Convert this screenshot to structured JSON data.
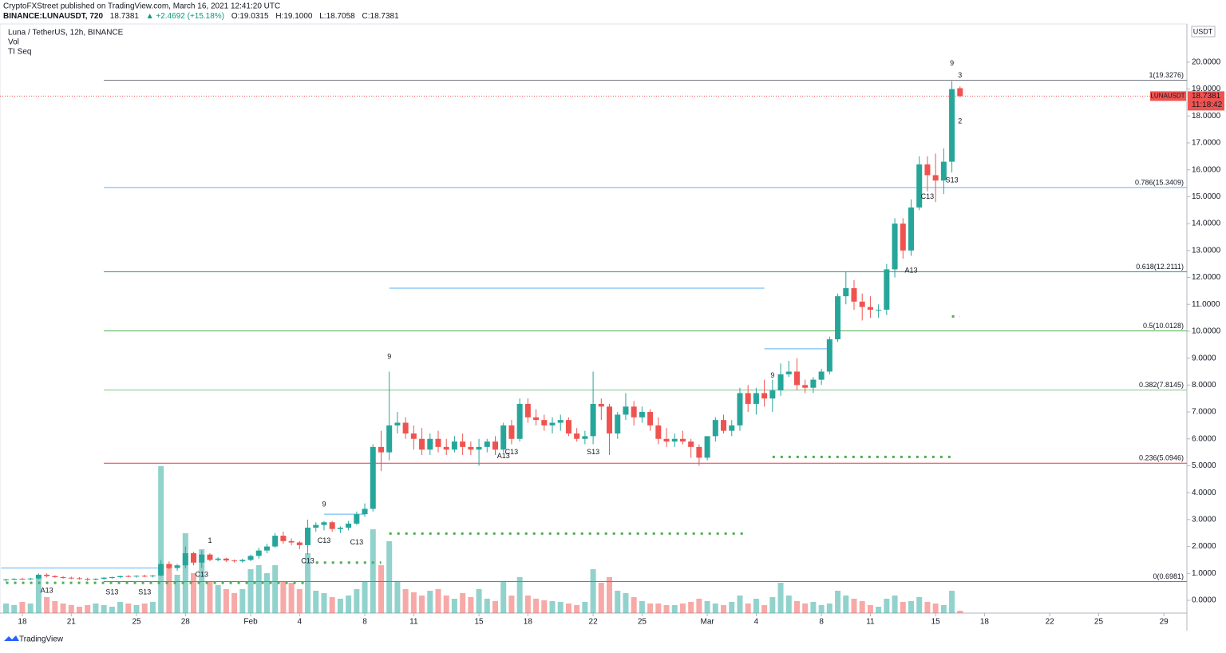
{
  "header": {
    "published": "CryptoFXStreet published on TradingView.com, March 16, 2021 12:41:20 UTC",
    "symbol": "BINANCE:LUNAUSDT, 720",
    "price": "18.7381",
    "change": "▲ +2.4692 (+15.18%)",
    "ohlc": [
      "O:19.0315",
      "H:19.1000",
      "L:18.7058",
      "C:18.7381"
    ]
  },
  "legend": [
    "Luna / TetherUS, 12h, BINANCE",
    "Vol",
    "TI Seq"
  ],
  "footer": "TradingView",
  "chart_data": {
    "type": "candlestick",
    "currency": "USDT",
    "up_color": "#26a69a",
    "down_color": "#ef5350",
    "xlim": [
      16.63,
      89.41
    ],
    "ylim": [
      -0.475,
      21.42
    ],
    "xticks": [
      {
        "value": 18,
        "label": "18"
      },
      {
        "value": 21,
        "label": "21"
      },
      {
        "value": 25,
        "label": "25"
      },
      {
        "value": 28,
        "label": "28"
      },
      {
        "value": 32,
        "label": "Feb"
      },
      {
        "value": 35,
        "label": "4"
      },
      {
        "value": 39,
        "label": "8"
      },
      {
        "value": 42,
        "label": "11"
      },
      {
        "value": 46,
        "label": "15"
      },
      {
        "value": 49,
        "label": "18"
      },
      {
        "value": 53,
        "label": "22"
      },
      {
        "value": 56,
        "label": "25"
      },
      {
        "value": 60,
        "label": "Mar"
      },
      {
        "value": 63,
        "label": "4"
      },
      {
        "value": 67,
        "label": "8"
      },
      {
        "value": 70,
        "label": "11"
      },
      {
        "value": 74,
        "label": "15"
      },
      {
        "value": 77,
        "label": "18"
      },
      {
        "value": 81,
        "label": "22"
      },
      {
        "value": 84,
        "label": "25"
      },
      {
        "value": 88,
        "label": "29"
      }
    ],
    "yticks": [
      {
        "value": 0,
        "label": "0.0000"
      },
      {
        "value": 1,
        "label": "1.0000"
      },
      {
        "value": 2,
        "label": "2.0000"
      },
      {
        "value": 3,
        "label": "3.0000"
      },
      {
        "value": 4,
        "label": "4.0000"
      },
      {
        "value": 5,
        "label": "5.0000"
      },
      {
        "value": 6,
        "label": "6.0000"
      },
      {
        "value": 7,
        "label": "7.0000"
      },
      {
        "value": 8,
        "label": "8.0000"
      },
      {
        "value": 9,
        "label": "9.0000"
      },
      {
        "value": 10,
        "label": "10.0000"
      },
      {
        "value": 11,
        "label": "11.0000"
      },
      {
        "value": 12,
        "label": "12.0000"
      },
      {
        "value": 13,
        "label": "13.0000"
      },
      {
        "value": 14,
        "label": "14.0000"
      },
      {
        "value": 15,
        "label": "15.0000"
      },
      {
        "value": 16,
        "label": "16.0000"
      },
      {
        "value": 17,
        "label": "17.0000"
      },
      {
        "value": 18,
        "label": "18.0000"
      },
      {
        "value": 19,
        "label": "19.0000"
      },
      {
        "value": 20,
        "label": "20.0000"
      }
    ],
    "x": [
      17,
      17.5,
      18,
      18.5,
      19,
      19.5,
      20,
      20.5,
      21,
      21.5,
      22,
      22.5,
      23,
      23.5,
      24,
      24.5,
      25,
      25.5,
      26,
      26.5,
      27,
      27.5,
      28,
      28.5,
      29,
      29.5,
      30,
      30.5,
      31,
      31.5,
      32,
      32.5,
      33,
      33.5,
      34,
      34.5,
      35,
      35.5,
      36,
      36.5,
      37,
      37.5,
      38,
      38.5,
      39,
      39.5,
      40,
      40.5,
      41,
      41.5,
      42,
      42.5,
      43,
      43.5,
      44,
      44.5,
      45,
      45.5,
      46,
      46.5,
      47,
      47.5,
      48,
      48.5,
      49,
      49.5,
      50,
      50.5,
      51,
      51.5,
      52,
      52.5,
      53,
      53.5,
      54,
      54.5,
      55,
      55.5,
      56,
      56.5,
      57,
      57.5,
      58,
      58.5,
      59,
      59.5,
      60,
      60.5,
      61,
      61.5,
      62,
      62.5,
      63,
      63.5,
      64,
      64.5,
      65,
      65.5,
      66,
      66.5,
      67,
      67.5,
      68,
      68.5,
      69,
      69.5,
      70,
      70.5,
      71,
      71.5,
      72,
      72.5,
      73,
      73.5,
      74,
      74.5,
      75,
      75.5
    ],
    "open": [
      0.75,
      0.78,
      0.8,
      0.79,
      0.81,
      0.95,
      0.9,
      0.86,
      0.84,
      0.82,
      0.8,
      0.78,
      0.8,
      0.84,
      0.86,
      0.9,
      0.88,
      0.91,
      0.89,
      0.92,
      1.35,
      1.2,
      1.3,
      1.75,
      1.4,
      1.7,
      1.5,
      1.55,
      1.48,
      1.45,
      1.5,
      1.65,
      1.85,
      2.0,
      2.4,
      2.2,
      2.15,
      2.05,
      2.7,
      2.8,
      2.9,
      2.65,
      2.7,
      2.85,
      3.2,
      3.4,
      5.7,
      5.5,
      6.5,
      6.6,
      6.2,
      6.0,
      5.6,
      6.0,
      5.7,
      5.6,
      5.9,
      5.7,
      5.6,
      5.7,
      5.9,
      5.6,
      6.5,
      6.0,
      7.3,
      6.8,
      6.7,
      6.5,
      6.6,
      6.7,
      6.2,
      6.0,
      6.1,
      7.3,
      7.2,
      6.2,
      6.9,
      7.2,
      6.8,
      7.0,
      6.5,
      6.0,
      5.9,
      6.0,
      5.9,
      5.7,
      5.3,
      6.1,
      6.7,
      6.3,
      6.5,
      7.7,
      7.3,
      7.7,
      7.5,
      7.8,
      8.4,
      8.5,
      8.0,
      7.9,
      8.2,
      8.5,
      9.7,
      11.3,
      11.6,
      11.1,
      10.9,
      10.8,
      10.8,
      12.3,
      14.0,
      13.0,
      14.6,
      16.2,
      15.8,
      15.6,
      16.3,
      19.0315
    ],
    "high": [
      0.8,
      0.82,
      0.84,
      0.83,
      1.0,
      1.0,
      0.93,
      0.9,
      0.88,
      0.86,
      0.84,
      0.82,
      0.86,
      0.88,
      0.92,
      0.94,
      0.93,
      0.95,
      0.94,
      1.5,
      1.45,
      1.35,
      2.0,
      1.8,
      1.85,
      1.75,
      1.6,
      1.58,
      1.52,
      1.55,
      1.7,
      1.95,
      2.1,
      2.5,
      2.55,
      2.3,
      2.2,
      3.0,
      2.9,
      2.95,
      2.95,
      2.75,
      2.95,
      3.3,
      3.6,
      5.8,
      6.3,
      8.5,
      7.0,
      6.8,
      6.5,
      6.4,
      6.2,
      6.3,
      6.0,
      6.1,
      6.2,
      5.9,
      6.0,
      6.0,
      6.1,
      6.6,
      6.7,
      7.5,
      7.5,
      7.1,
      6.9,
      6.8,
      6.9,
      6.8,
      6.4,
      6.3,
      8.5,
      7.5,
      7.3,
      7.0,
      7.7,
      7.4,
      7.2,
      7.1,
      6.8,
      6.4,
      6.2,
      6.3,
      6.0,
      5.8,
      6.1,
      6.8,
      6.9,
      6.7,
      7.9,
      8.0,
      7.9,
      8.2,
      8.2,
      8.8,
      8.9,
      9.0,
      8.2,
      8.3,
      8.6,
      9.8,
      11.4,
      12.2,
      11.9,
      11.4,
      11.3,
      11.0,
      12.5,
      14.2,
      14.2,
      14.9,
      16.5,
      16.5,
      16.6,
      16.8,
      19.3,
      19.1
    ],
    "low": [
      0.7,
      0.74,
      0.76,
      0.75,
      0.78,
      0.85,
      0.84,
      0.8,
      0.78,
      0.77,
      0.72,
      0.74,
      0.76,
      0.8,
      0.82,
      0.85,
      0.84,
      0.86,
      0.85,
      0.9,
      1.15,
      1.1,
      1.2,
      1.3,
      1.2,
      1.45,
      1.45,
      1.42,
      1.4,
      1.4,
      1.45,
      1.55,
      1.75,
      1.95,
      2.1,
      2.05,
      1.9,
      1.7,
      2.55,
      2.6,
      2.55,
      2.5,
      2.6,
      2.8,
      3.1,
      3.3,
      4.8,
      5.2,
      6.2,
      6.0,
      5.6,
      5.4,
      5.4,
      5.5,
      5.4,
      5.5,
      5.4,
      5.4,
      5.0,
      5.5,
      5.4,
      5.5,
      5.8,
      5.9,
      6.6,
      6.5,
      6.3,
      6.2,
      6.3,
      6.1,
      5.9,
      5.8,
      5.8,
      6.7,
      5.4,
      6.0,
      6.7,
      6.5,
      6.6,
      6.3,
      5.8,
      5.7,
      5.7,
      5.8,
      5.3,
      5.0,
      5.2,
      5.9,
      6.2,
      6.1,
      6.3,
      7.0,
      6.9,
      7.2,
      7.0,
      7.6,
      8.3,
      7.8,
      7.7,
      7.7,
      8.0,
      8.4,
      9.6,
      11.0,
      10.8,
      10.4,
      10.5,
      10.5,
      10.6,
      12.0,
      12.7,
      12.8,
      14.5,
      15.2,
      14.8,
      15.1,
      15.9,
      18.7058
    ],
    "close": [
      0.78,
      0.8,
      0.79,
      0.81,
      0.95,
      0.9,
      0.86,
      0.84,
      0.82,
      0.8,
      0.78,
      0.8,
      0.84,
      0.86,
      0.9,
      0.88,
      0.91,
      0.89,
      0.92,
      1.35,
      1.2,
      1.3,
      1.75,
      1.4,
      1.7,
      1.5,
      1.55,
      1.48,
      1.45,
      1.5,
      1.65,
      1.85,
      2.0,
      2.4,
      2.2,
      2.15,
      2.05,
      2.7,
      2.8,
      2.9,
      2.65,
      2.7,
      2.85,
      3.2,
      3.4,
      5.7,
      5.5,
      6.5,
      6.6,
      6.2,
      6.0,
      5.6,
      6.0,
      5.7,
      5.6,
      5.9,
      5.7,
      5.6,
      5.7,
      5.9,
      5.6,
      6.5,
      6.0,
      7.3,
      6.8,
      6.7,
      6.5,
      6.6,
      6.7,
      6.2,
      6.0,
      6.1,
      7.3,
      7.2,
      6.2,
      6.9,
      7.2,
      6.8,
      7.0,
      6.5,
      6.0,
      5.9,
      6.0,
      5.9,
      5.7,
      5.3,
      6.1,
      6.7,
      6.3,
      6.5,
      7.7,
      7.3,
      7.7,
      7.5,
      7.8,
      8.4,
      8.5,
      8.0,
      7.9,
      8.2,
      8.5,
      9.7,
      11.3,
      11.6,
      11.1,
      10.9,
      10.8,
      10.8,
      12.3,
      14.0,
      13.0,
      14.6,
      16.2,
      15.8,
      15.6,
      16.3,
      19.0,
      18.7381
    ],
    "volume": [
      12,
      10,
      14,
      12,
      45,
      20,
      15,
      12,
      10,
      8,
      10,
      12,
      10,
      8,
      14,
      12,
      10,
      12,
      14,
      184,
      60,
      48,
      100,
      50,
      80,
      40,
      35,
      30,
      25,
      30,
      55,
      60,
      50,
      60,
      40,
      38,
      30,
      75,
      28,
      25,
      20,
      18,
      22,
      30,
      40,
      105,
      60,
      90,
      40,
      30,
      26,
      22,
      28,
      30,
      22,
      18,
      25,
      20,
      30,
      18,
      15,
      40,
      22,
      45,
      22,
      18,
      16,
      15,
      14,
      12,
      10,
      14,
      55,
      38,
      45,
      28,
      25,
      20,
      15,
      12,
      12,
      10,
      10,
      12,
      14,
      18,
      15,
      12,
      10,
      14,
      22,
      12,
      18,
      10,
      20,
      38,
      22,
      15,
      12,
      14,
      10,
      12,
      28,
      22,
      18,
      15,
      10,
      8,
      18,
      22,
      14,
      15,
      20,
      14,
      12,
      10,
      28,
      3
    ],
    "fib_levels": [
      {
        "value": 19.3276,
        "label": "1(19.3276)",
        "color": "#787b86"
      },
      {
        "value": 15.3409,
        "label": "0.786(15.3409)",
        "color": "#64b5f6"
      },
      {
        "value": 12.2111,
        "label": "0.618(12.2111)",
        "color": "#089981"
      },
      {
        "value": 10.0128,
        "label": "0.5(10.0128)",
        "color": "#4caf50"
      },
      {
        "value": 7.8145,
        "label": "0.382(7.8145)",
        "color": "#81c784"
      },
      {
        "value": 5.0946,
        "label": "0.236(5.0946)",
        "color": "#f23645"
      },
      {
        "value": 0.6981,
        "label": "0(0.6981)",
        "color": "#787b86"
      }
    ],
    "levels": [
      {
        "value": 5.33,
        "from": 64,
        "to": 75,
        "color": "#4caf50",
        "style": "dotted"
      },
      {
        "value": 2.48,
        "from": 40.5,
        "to": 62.5,
        "color": "#4caf50",
        "style": "dotted"
      },
      {
        "value": 1.4,
        "from": 36,
        "to": 40,
        "color": "#4caf50",
        "style": "dotted"
      },
      {
        "value": 0.65,
        "from": 17,
        "to": 35.5,
        "color": "#4caf50",
        "style": "dotted"
      },
      {
        "value": 10.55,
        "from": 75,
        "to": 75.5,
        "color": "#4caf50",
        "style": "dotted"
      },
      {
        "value": 11.6,
        "from": 40.5,
        "to": 63.5,
        "color": "#90caf9",
        "style": "solid"
      },
      {
        "value": 9.35,
        "from": 63.5,
        "to": 67.5,
        "color": "#90caf9",
        "style": "solid"
      },
      {
        "value": 3.2,
        "from": 36.5,
        "to": 39,
        "color": "#90caf9",
        "style": "solid"
      },
      {
        "value": 1.2,
        "from": 16.7,
        "to": 26.5,
        "color": "#90caf9",
        "style": "solid"
      }
    ],
    "annotations": [
      {
        "text": "9",
        "x": 40.5,
        "y": 9.05,
        "color": "#089981"
      },
      {
        "text": "9",
        "x": 36.5,
        "y": 3.55,
        "color": "#089981"
      },
      {
        "text": "9",
        "x": 64,
        "y": 8.35,
        "color": "#089981"
      },
      {
        "text": "9",
        "x": 75,
        "y": 19.95,
        "color": "#089981"
      },
      {
        "text": "1",
        "x": 29.5,
        "y": 2.2,
        "color": "#f23645"
      },
      {
        "text": "2",
        "x": 75.5,
        "y": 17.8,
        "color": "#089981"
      },
      {
        "text": "3",
        "x": 75.5,
        "y": 19.5,
        "color": "#089981"
      },
      {
        "text": "A13",
        "x": 19.5,
        "y": 0.35,
        "color": "#2196f3"
      },
      {
        "text": "S13",
        "x": 23.5,
        "y": 0.3,
        "color": "#ff9800"
      },
      {
        "text": "S13",
        "x": 25.5,
        "y": 0.3,
        "color": "#ff9800"
      },
      {
        "text": "C13",
        "x": 29,
        "y": 0.95,
        "color": "#e040fb"
      },
      {
        "text": "C13",
        "x": 35.5,
        "y": 1.45,
        "color": "#7986cb"
      },
      {
        "text": "C13",
        "x": 36.5,
        "y": 2.2,
        "color": "#e040fb"
      },
      {
        "text": "C13",
        "x": 38.5,
        "y": 2.15,
        "color": "#e040fb"
      },
      {
        "text": "A13",
        "x": 47.5,
        "y": 5.35,
        "color": "#2196f3"
      },
      {
        "text": "C13",
        "x": 48,
        "y": 5.5,
        "color": "#e040fb"
      },
      {
        "text": "S13",
        "x": 53,
        "y": 5.5,
        "color": "#ff9800"
      },
      {
        "text": "A13",
        "x": 72.5,
        "y": 12.25,
        "color": "#2196f3"
      },
      {
        "text": "C13",
        "x": 73.5,
        "y": 15.0,
        "color": "#e040fb"
      },
      {
        "text": "S13",
        "x": 75,
        "y": 15.6,
        "color": "#ff9800"
      }
    ],
    "last_price": {
      "value": 18.7381,
      "label": "18.7381",
      "symbol": "LUNAUSDT",
      "countdown": "11:18:42"
    }
  }
}
